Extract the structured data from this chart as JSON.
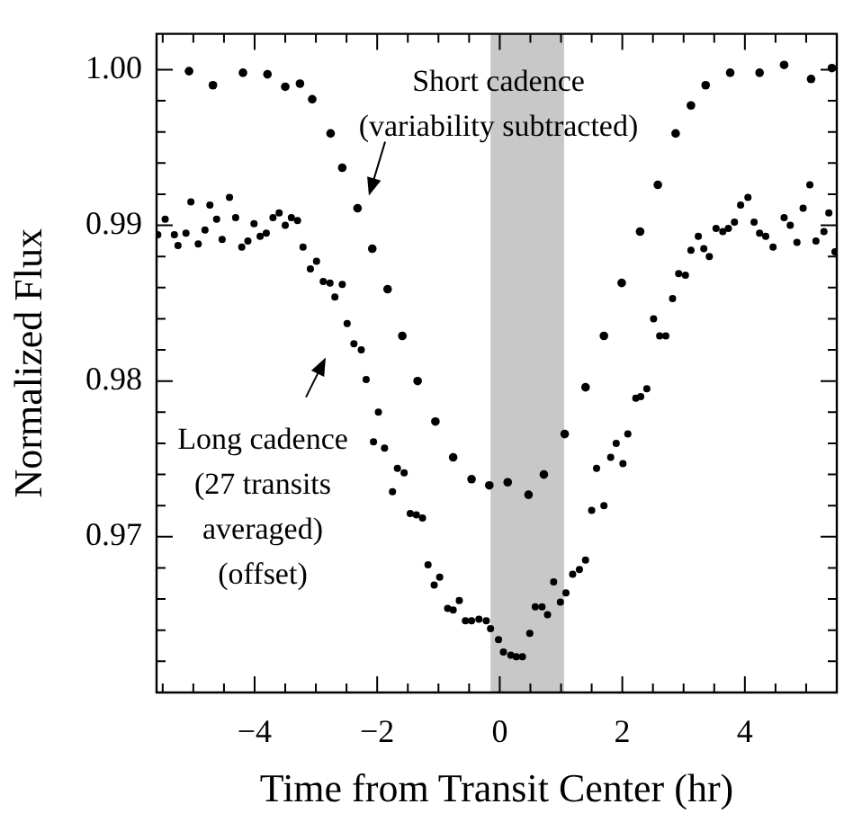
{
  "chart_data": {
    "type": "scatter",
    "xlabel": "Time from Transit Center (hr)",
    "ylabel": "Normalized Flux",
    "xlim": [
      -5.6,
      5.5
    ],
    "ylim": [
      0.96,
      1.0023
    ],
    "xticks": [
      {
        "value": -5.5,
        "label": null
      },
      {
        "value": -5,
        "label": null
      },
      {
        "value": -4.5,
        "label": null
      },
      -4,
      {
        "value": -3.5,
        "label": null
      },
      {
        "value": -3,
        "label": null
      },
      {
        "value": -2.5,
        "label": null
      },
      -2,
      {
        "value": -1.5,
        "label": null
      },
      {
        "value": -1,
        "label": null
      },
      {
        "value": -0.5,
        "label": null
      },
      0,
      {
        "value": 0.5,
        "label": null
      },
      {
        "value": 1,
        "label": null
      },
      {
        "value": 1.5,
        "label": null
      },
      2,
      {
        "value": 2.5,
        "label": null
      },
      {
        "value": 3,
        "label": null
      },
      {
        "value": 3.5,
        "label": null
      },
      4,
      {
        "value": 4.5,
        "label": null
      },
      {
        "value": 5,
        "label": null
      }
    ],
    "yticks": [
      {
        "value": 0.962,
        "label": null
      },
      {
        "value": 0.964,
        "label": null
      },
      {
        "value": 0.966,
        "label": null
      },
      {
        "value": 0.968,
        "label": null
      },
      {
        "value": 0.97,
        "label": "0.97"
      },
      {
        "value": 0.972,
        "label": null
      },
      {
        "value": 0.974,
        "label": null
      },
      {
        "value": 0.976,
        "label": null
      },
      {
        "value": 0.978,
        "label": null
      },
      {
        "value": 0.98,
        "label": "0.98"
      },
      {
        "value": 0.982,
        "label": null
      },
      {
        "value": 0.984,
        "label": null
      },
      {
        "value": 0.986,
        "label": null
      },
      {
        "value": 0.988,
        "label": null
      },
      {
        "value": 0.99,
        "label": "0.99"
      },
      {
        "value": 0.992,
        "label": null
      },
      {
        "value": 0.994,
        "label": null
      },
      {
        "value": 0.996,
        "label": null
      },
      {
        "value": 0.998,
        "label": null
      },
      {
        "value": 1.0,
        "label": "1.00"
      }
    ],
    "grid": false,
    "legend": false,
    "marker": "circle",
    "bands": [
      {
        "axis": "x",
        "from": -0.15,
        "to": 1.05,
        "color": "#c8c8c8"
      }
    ],
    "annotations": [
      "Short cadence",
      "(variability subtracted)",
      "Long cadence",
      "(27 transits",
      "averaged)",
      "(offset)"
    ],
    "series": [
      {
        "color": "#000000",
        "x": [
          -5.07,
          -4.68,
          -4.19,
          -3.79,
          -3.5,
          -3.26,
          -3.06,
          -2.76,
          -2.57,
          -2.32,
          -2.08,
          -1.83,
          -1.59,
          -1.34,
          -1.05,
          -0.76,
          -0.46,
          -0.17,
          0.13,
          0.47,
          0.72,
          1.06,
          1.4,
          1.7,
          1.99,
          2.29,
          2.58,
          2.87,
          3.12,
          3.36,
          3.76,
          4.24,
          4.64,
          5.08,
          5.42
        ],
        "values": [
          0.9999,
          0.999,
          0.9998,
          0.9997,
          0.9989,
          0.9991,
          0.9981,
          0.9959,
          0.9937,
          0.9911,
          0.9885,
          0.9859,
          0.9829,
          0.98,
          0.9774,
          0.9751,
          0.9737,
          0.9733,
          0.9735,
          0.9727,
          0.974,
          0.9766,
          0.9796,
          0.9829,
          0.9863,
          0.9896,
          0.9926,
          0.9959,
          0.9977,
          0.999,
          0.9998,
          0.9998,
          1.0003,
          0.9994,
          1.0001
        ]
      },
      {
        "color": "#000000",
        "x": [
          -5.58,
          -5.46,
          -5.31,
          -5.25,
          -5.12,
          -5.04,
          -4.92,
          -4.81,
          -4.73,
          -4.62,
          -4.53,
          -4.41,
          -4.31,
          -4.21,
          -4.11,
          -4.01,
          -3.91,
          -3.81,
          -3.7,
          -3.6,
          -3.5,
          -3.4,
          -3.3,
          -3.21,
          -3.09,
          -2.99,
          -2.88,
          -2.77,
          -2.69,
          -2.57,
          -2.49,
          -2.38,
          -2.26,
          -2.18,
          -2.06,
          -1.98,
          -1.88,
          -1.75,
          -1.67,
          -1.56,
          -1.46,
          -1.36,
          -1.26,
          -1.17,
          -1.07,
          -0.98,
          -0.85,
          -0.76,
          -0.66,
          -0.56,
          -0.46,
          -0.34,
          -0.22,
          -0.15,
          -0.02,
          0.06,
          0.18,
          0.27,
          0.37,
          0.49,
          0.58,
          0.69,
          0.78,
          0.88,
          0.99,
          1.08,
          1.19,
          1.3,
          1.4,
          1.5,
          1.58,
          1.7,
          1.81,
          1.9,
          2.01,
          2.09,
          2.22,
          2.3,
          2.4,
          2.51,
          2.61,
          2.71,
          2.82,
          2.92,
          3.03,
          3.12,
          3.24,
          3.33,
          3.42,
          3.53,
          3.64,
          3.73,
          3.83,
          3.93,
          4.05,
          4.15,
          4.24,
          4.34,
          4.46,
          4.64,
          4.74,
          4.85,
          4.95,
          5.06,
          5.16,
          5.29,
          5.37,
          5.47
        ],
        "values": [
          0.9894,
          0.9904,
          0.9894,
          0.9887,
          0.9895,
          0.9915,
          0.9888,
          0.9897,
          0.9913,
          0.9904,
          0.9891,
          0.9918,
          0.9905,
          0.9886,
          0.989,
          0.9901,
          0.9893,
          0.9895,
          0.9905,
          0.9908,
          0.99,
          0.9905,
          0.9903,
          0.9886,
          0.9872,
          0.9877,
          0.9864,
          0.9863,
          0.9854,
          0.9862,
          0.9837,
          0.9824,
          0.982,
          0.9801,
          0.9761,
          0.978,
          0.9757,
          0.9729,
          0.9744,
          0.9741,
          0.9715,
          0.9714,
          0.9712,
          0.9682,
          0.9669,
          0.9674,
          0.9654,
          0.9653,
          0.9659,
          0.9646,
          0.9646,
          0.9647,
          0.9646,
          0.9641,
          0.9634,
          0.9626,
          0.9624,
          0.9623,
          0.9623,
          0.9638,
          0.9655,
          0.9655,
          0.965,
          0.9671,
          0.9658,
          0.9664,
          0.9676,
          0.9679,
          0.9685,
          0.9717,
          0.9744,
          0.972,
          0.9751,
          0.976,
          0.9747,
          0.9766,
          0.9789,
          0.979,
          0.9795,
          0.984,
          0.9829,
          0.9829,
          0.9853,
          0.9869,
          0.9868,
          0.9884,
          0.9893,
          0.9885,
          0.988,
          0.9898,
          0.9896,
          0.9898,
          0.9902,
          0.9913,
          0.9918,
          0.9902,
          0.9895,
          0.9893,
          0.9886,
          0.9905,
          0.99,
          0.9889,
          0.9911,
          0.9926,
          0.989,
          0.9896,
          0.9908,
          0.9883
        ]
      }
    ]
  }
}
